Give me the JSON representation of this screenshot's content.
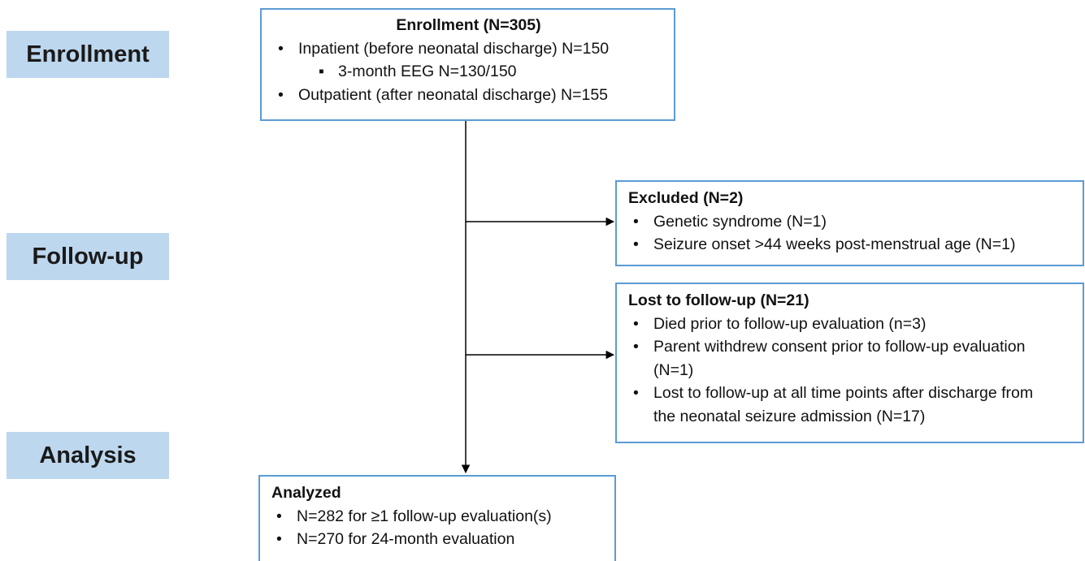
{
  "stages": [
    "Enrollment",
    "Follow-up",
    "Analysis"
  ],
  "enrollment": {
    "title": "Enrollment (N=305)",
    "items": [
      "Inpatient (before neonatal discharge) N=150",
      "3-month  EEG N=130/150",
      "Outpatient (after neonatal discharge) N=155"
    ]
  },
  "excluded": {
    "title": "Excluded (N=2)",
    "items": [
      "Genetic syndrome (N=1)",
      "Seizure onset >44 weeks post-menstrual age (N=1)"
    ]
  },
  "lost": {
    "title": "Lost to follow-up (N=21)",
    "items": [
      "Died prior to follow-up evaluation (n=3)",
      "Parent withdrew consent prior to follow-up evaluation (N=1)",
      "Lost to follow-up at all time points after discharge from the neonatal seizure admission (N=17)"
    ]
  },
  "analyzed": {
    "title": "Analyzed",
    "items": [
      "N=282 for ≥1 follow-up evaluation(s)",
      "N=270 for 24-month evaluation"
    ]
  }
}
